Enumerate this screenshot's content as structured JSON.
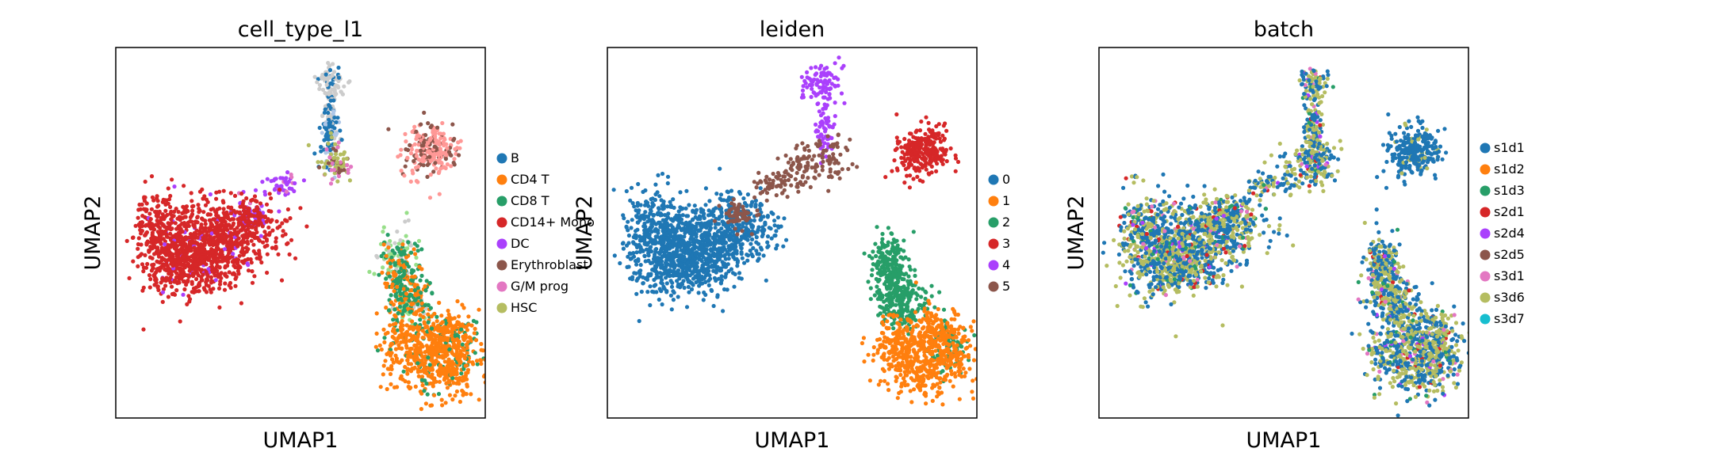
{
  "chart_data": [
    {
      "type": "scatter",
      "title": "cell_type_l1",
      "xlabel": "UMAP1",
      "ylabel": "UMAP2",
      "grid": false,
      "legend_position": "right",
      "legend": [
        {
          "label": "B",
          "color": "#1f77b4"
        },
        {
          "label": "CD4 T",
          "color": "#ff7f0e"
        },
        {
          "label": "CD8 T",
          "color": "#279e68"
        },
        {
          "label": "CD14+ Mono",
          "color": "#d62728"
        },
        {
          "label": "DC",
          "color": "#aa40fc"
        },
        {
          "label": "Erythroblast",
          "color": "#8c564b"
        },
        {
          "label": "G/M prog",
          "color": "#e377c2"
        },
        {
          "label": "HSC",
          "color": "#b5bd61"
        }
      ]
    },
    {
      "type": "scatter",
      "title": "leiden",
      "xlabel": "UMAP1",
      "ylabel": "UMAP2",
      "grid": false,
      "legend_position": "right",
      "legend": [
        {
          "label": "0",
          "color": "#1f77b4"
        },
        {
          "label": "1",
          "color": "#ff7f0e"
        },
        {
          "label": "2",
          "color": "#279e68"
        },
        {
          "label": "3",
          "color": "#d62728"
        },
        {
          "label": "4",
          "color": "#aa40fc"
        },
        {
          "label": "5",
          "color": "#8c564b"
        }
      ]
    },
    {
      "type": "scatter",
      "title": "batch",
      "xlabel": "UMAP1",
      "ylabel": "UMAP2",
      "grid": false,
      "legend_position": "right",
      "legend": [
        {
          "label": "s1d1",
          "color": "#1f77b4"
        },
        {
          "label": "s1d2",
          "color": "#ff7f0e"
        },
        {
          "label": "s1d3",
          "color": "#279e68"
        },
        {
          "label": "s2d1",
          "color": "#d62728"
        },
        {
          "label": "s2d4",
          "color": "#aa40fc"
        },
        {
          "label": "s2d5",
          "color": "#8c564b"
        },
        {
          "label": "s3d1",
          "color": "#e377c2"
        },
        {
          "label": "s3d6",
          "color": "#b5bd61"
        },
        {
          "label": "s3d7",
          "color": "#17becf"
        }
      ]
    }
  ]
}
